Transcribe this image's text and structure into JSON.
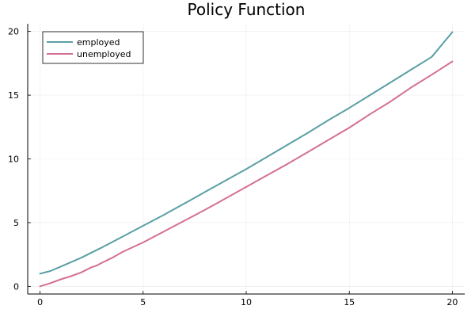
{
  "chart_data": {
    "type": "line",
    "title": "Policy Function",
    "xlabel": "",
    "ylabel": "",
    "xlim": [
      -0.6,
      20.6
    ],
    "ylim": [
      -0.6,
      20.6
    ],
    "x_ticks": [
      0,
      5,
      10,
      15,
      20
    ],
    "y_ticks": [
      0,
      5,
      10,
      15,
      20
    ],
    "grid": true,
    "legend": "top-left",
    "series": [
      {
        "name": "employed",
        "color": "#5a9fa4",
        "x": [
          0,
          0.5,
          1,
          1.5,
          2,
          2.5,
          3,
          4,
          5,
          6,
          7,
          8,
          9,
          10,
          11,
          12,
          13,
          14,
          15,
          16,
          17,
          18,
          19,
          20
        ],
        "y": [
          1.0,
          1.2,
          1.55,
          1.9,
          2.25,
          2.65,
          3.05,
          3.9,
          4.75,
          5.6,
          6.5,
          7.4,
          8.3,
          9.2,
          10.15,
          11.1,
          12.05,
          13.05,
          14.0,
          15.0,
          16.0,
          17.0,
          18.0,
          19.95
        ]
      },
      {
        "name": "unemployed",
        "color": "#d46f95",
        "x": [
          0,
          0.5,
          1,
          1.5,
          2,
          2.5,
          2.7,
          3,
          3.5,
          4,
          5,
          6,
          7,
          8,
          9,
          10,
          11,
          12,
          13,
          14,
          15,
          16,
          17,
          18,
          19,
          20
        ],
        "y": [
          0.0,
          0.25,
          0.55,
          0.8,
          1.1,
          1.5,
          1.6,
          1.85,
          2.25,
          2.7,
          3.45,
          4.3,
          5.15,
          6.0,
          6.9,
          7.8,
          8.7,
          9.6,
          10.55,
          11.5,
          12.45,
          13.5,
          14.5,
          15.6,
          16.6,
          17.65
        ]
      }
    ]
  }
}
